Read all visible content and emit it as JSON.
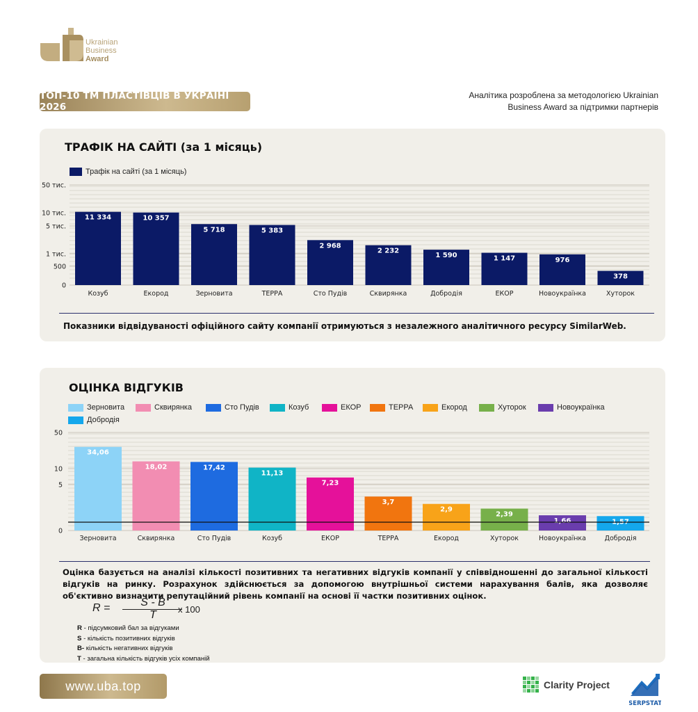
{
  "logo": {
    "line1": "Ukrainian",
    "line2": "Business",
    "line3": "Award"
  },
  "header": {
    "badge": "ТОП-10 ТМ ПЛАСТІВЦІВ В УКРАЇНІ 2026",
    "note_line1": "Аналітика розроблена за методологією Ukrainian",
    "note_line2": "Business Award за підтримки партнерів"
  },
  "traffic": {
    "title": "ТРАФІК НА САЙТІ (за 1 місяць)",
    "note": "Показники відвідуваності офіційного сайту компанії отримуються з незалежного аналітичного ресурсу SimilarWeb."
  },
  "reviews": {
    "title": "ОЦІНКА ВІДГУКІВ",
    "method": "Оцінка базується на аналізі кількості позитивних та негативних відгуків компанії у співвідношенні до загальної кількості відгуків на ринку. Розрахунок здійснюється за допомогою внутрішньої системи нарахування балів, яка дозволяє об'єктивно визначити репутаційний рівень компанії на основі її частки позитивних оцінок.",
    "formula": {
      "lhs": "R =",
      "numerator": "S - B",
      "denominator": "T",
      "multiplier": "x 100"
    },
    "legend_lines": [
      {
        "key": "R",
        "text": " - підсумковий бал за відгуками"
      },
      {
        "key": "S",
        "text": " - кількість позитивних відгуків"
      },
      {
        "key": "B-",
        "text": "  кількість негативних відгуків"
      },
      {
        "key": "T",
        "text": " - загальна кількість відгуків усіх компаній"
      }
    ]
  },
  "footer": {
    "site": "www.uba.top",
    "partner1": "Clarity Project",
    "partner2": "SERPSTAT"
  },
  "chart_data": [
    {
      "type": "bar",
      "title": "ТРАФІК НА САЙТІ (за 1 місяць)",
      "categories": [
        "Козуб",
        "Екород",
        "Зерновита",
        "ТЕРРА",
        "Сто Пудів",
        "Сквирянка",
        "Добродія",
        "ЕКОР",
        "Новоукраїнка",
        "Хуторок"
      ],
      "series": [
        {
          "name": "Трафік на сайті (за 1 місяць)",
          "values": [
            11334,
            10357,
            5718,
            5383,
            2968,
            2232,
            1590,
            1147,
            976,
            378
          ],
          "labels": [
            "11 334",
            "10 357",
            "5 718",
            "5 383",
            "2 968",
            "2 232",
            "1 590",
            "1 147",
            "976",
            "378"
          ],
          "color": "#0b1a66"
        }
      ],
      "y_ticks": [
        {
          "value": 0,
          "label": "0"
        },
        {
          "value": 500,
          "label": "500"
        },
        {
          "value": 1000,
          "label": "1 тис."
        },
        {
          "value": 5000,
          "label": "5 тис."
        },
        {
          "value": 10000,
          "label": "10 тис."
        },
        {
          "value": 50000,
          "label": "50 тис."
        }
      ],
      "scale": "symlog",
      "ylim": [
        0,
        50000
      ],
      "legend": "top-left",
      "grid": true
    },
    {
      "type": "bar",
      "title": "ОЦІНКА ВІДГУКІВ",
      "categories": [
        "Зерновита",
        "Сквирянка",
        "Сто Пудів",
        "Козуб",
        "ЕКОР",
        "ТЕРРА",
        "Екород",
        "Хуторок",
        "Новоукраїнка",
        "Добродія"
      ],
      "values": [
        34.06,
        18.02,
        17.42,
        11.13,
        7.23,
        3.7,
        2.9,
        2.39,
        1.66,
        1.57
      ],
      "labels": [
        "34,06",
        "18,02",
        "17,42",
        "11,13",
        "7,23",
        "3,7",
        "2,9",
        "2,39",
        "1,66",
        "1,57"
      ],
      "colors": [
        "#8dd3f7",
        "#f28db2",
        "#1e6be0",
        "#10b4c6",
        "#e5119a",
        "#f1750f",
        "#f8a319",
        "#77b04a",
        "#6a3dad",
        "#14a7ec"
      ],
      "y_ticks": [
        {
          "value": 0,
          "label": "0"
        },
        {
          "value": 5,
          "label": "5"
        },
        {
          "value": 10,
          "label": "10"
        },
        {
          "value": 50,
          "label": "50"
        }
      ],
      "scale": "symlog",
      "ylim": [
        0,
        50
      ],
      "legend": "top",
      "grid": true
    }
  ]
}
